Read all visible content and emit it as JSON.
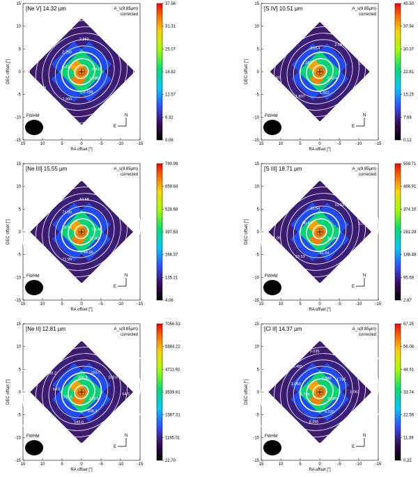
{
  "figure": {
    "note_line1": "A_s(9.85μm)",
    "note_line2": "corrected",
    "beam_label": "FWHM",
    "compass_n": "N",
    "compass_e": "E"
  },
  "chart_data": [
    {
      "type": "heatmap",
      "title": "[Ne V] 14.32 μm",
      "xlabel": "RA offset [″]",
      "ylabel": "DEC offset [″]",
      "xlim": [
        15,
        -15
      ],
      "ylim": [
        -15,
        15
      ],
      "xticks": [
        15,
        10,
        5,
        0,
        -5,
        -10,
        -15
      ],
      "yticks": [
        -15,
        -10,
        -5,
        0,
        5,
        10,
        15
      ],
      "colorbar_ticks": [
        "0.08",
        "6.32",
        "12.57",
        "18.82",
        "25.07",
        "31.31",
        "37.56"
      ],
      "contour_labels": [
        "1.288",
        "2.258",
        "2.960",
        "0.733",
        "0.417",
        "2.258",
        "2.960",
        "0.733",
        "0.417"
      ]
    },
    {
      "type": "heatmap",
      "title": "[S IV] 10.51 μm",
      "xlabel": "RA offset [″]",
      "ylabel": "DEC offset [″]",
      "xlim": [
        15,
        -15
      ],
      "ylim": [
        -15,
        15
      ],
      "xticks": [
        15,
        10,
        5,
        0,
        -5,
        -10,
        -15
      ],
      "yticks": [
        -15,
        -10,
        -5,
        0,
        5,
        10,
        15
      ],
      "colorbar_ticks": [
        "0.12",
        "7.69",
        "15.25",
        "22.81",
        "30.37",
        "37.94",
        "45.50"
      ],
      "contour_labels": [
        "0.614",
        "1.052",
        "1.607",
        "2.087",
        "1.052",
        "0.614",
        "2.087",
        "1.607"
      ]
    },
    {
      "type": "heatmap",
      "title": "[Ne III] 15.55 μm",
      "xlabel": "RA offset [″]",
      "ylabel": "DEC offset [″]",
      "xlim": [
        15,
        -15
      ],
      "ylim": [
        -15,
        15
      ],
      "xticks": [
        15,
        10,
        5,
        0,
        -5,
        -10,
        -15
      ],
      "yticks": [
        -15,
        -10,
        -5,
        0,
        5,
        10,
        15
      ],
      "colorbar_ticks": [
        "4.06",
        "135.21",
        "266.37",
        "397.53",
        "528.68",
        "659.84",
        "790.99"
      ],
      "contour_labels": [
        "27.60",
        "44.58",
        "71.99",
        "17.09",
        "10.58",
        "71.99",
        "44.58",
        "17.09",
        "10.58"
      ]
    },
    {
      "type": "heatmap",
      "title": "[S III] 18.71 μm",
      "xlabel": "RA offset [″]",
      "ylabel": "DEC offset [″]",
      "xlim": [
        15,
        -15
      ],
      "ylim": [
        -15,
        15
      ],
      "xticks": [
        15,
        10,
        5,
        0,
        -5,
        -10,
        -15
      ],
      "yticks": [
        -15,
        -10,
        -5,
        0,
        5,
        10,
        15
      ],
      "colorbar_ticks": [
        "2.87",
        "95.68",
        "188.48",
        "281.29",
        "374.10",
        "466.91",
        "559.71"
      ],
      "contour_labels": [
        "50.94",
        "31.54",
        "19.53",
        "12.09",
        "50.94",
        "31.54",
        "19.53",
        "12.09"
      ]
    },
    {
      "type": "heatmap",
      "title": "[Ne II] 12.81 μm",
      "xlabel": "RA offset [″]",
      "ylabel": "DEC offset [″]",
      "xlim": [
        15,
        -15
      ],
      "ylim": [
        -15,
        15
      ],
      "xticks": [
        15,
        10,
        5,
        0,
        -5,
        -10,
        -15
      ],
      "yticks": [
        -15,
        -10,
        -5,
        0,
        5,
        10,
        15
      ],
      "colorbar_ticks": [
        "22.70",
        "1195.01",
        "2367.31",
        "3539.61",
        "4711.92",
        "5884.22",
        "7056.53"
      ],
      "contour_labels": [
        "519.5",
        "308.3",
        "183.0",
        "875.4",
        "108.6",
        "64.5",
        "38.2",
        "519.5",
        "308.3",
        "183.0",
        "108.6",
        "64.5"
      ]
    },
    {
      "type": "heatmap",
      "title": "[Cl II] 14.37 μm",
      "xlabel": "RA offset [″]",
      "ylabel": "DEC offset [″]",
      "xlim": [
        15,
        -15
      ],
      "ylim": [
        -15,
        15
      ],
      "xticks": [
        15,
        10,
        5,
        0,
        -5,
        -10,
        -15
      ],
      "yticks": [
        -15,
        -10,
        -5,
        0,
        5,
        10,
        15
      ],
      "colorbar_ticks": [
        "0.22",
        "11.39",
        "22.56",
        "33.74",
        "44.91",
        "56.08",
        "67.25"
      ],
      "contour_labels": [
        "2.988",
        "5.035",
        "8.455",
        "14.160",
        "1.785",
        "1.063",
        "8.455",
        "5.035",
        "2.988",
        "1.785",
        "1.063"
      ]
    }
  ]
}
